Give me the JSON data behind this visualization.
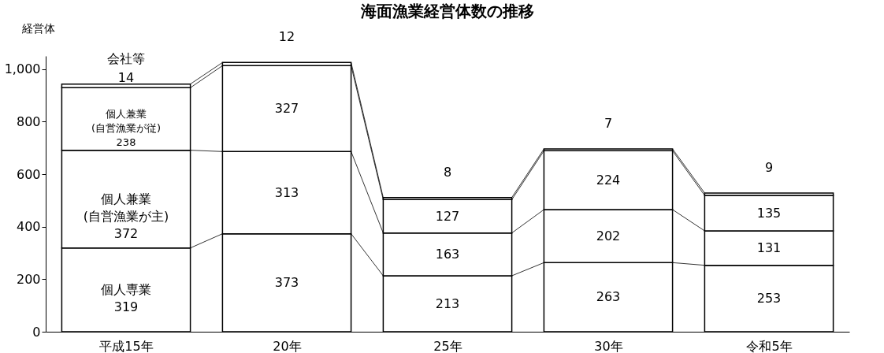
{
  "chart_data": {
    "type": "bar",
    "title": "海面漁業経営体数の推移",
    "ylabel": "経営体",
    "categories": [
      "平成15年",
      "20年",
      "25年",
      "30年",
      "令和5年"
    ],
    "stacked": true,
    "ylim": [
      0,
      1050
    ],
    "yticks": [
      0,
      200,
      400,
      600,
      800,
      {
        "value": 1000,
        "label": "1,000"
      }
    ],
    "grid": false,
    "data_labels": true,
    "series": [
      {
        "name": "個人専業",
        "color": "#ffffff",
        "values": [
          319,
          373,
          213,
          263,
          253
        ]
      },
      {
        "name": "個人兼業(自営漁業が主)",
        "color": "#ffffff",
        "values": [
          372,
          313,
          163,
          202,
          131
        ]
      },
      {
        "name": "個人兼業(自営漁業が従)",
        "color": "#ffffff",
        "values": [
          238,
          327,
          127,
          224,
          135
        ]
      },
      {
        "name": "会社等",
        "color": "#ffffff",
        "values": [
          14,
          12,
          8,
          7,
          9
        ]
      }
    ]
  }
}
